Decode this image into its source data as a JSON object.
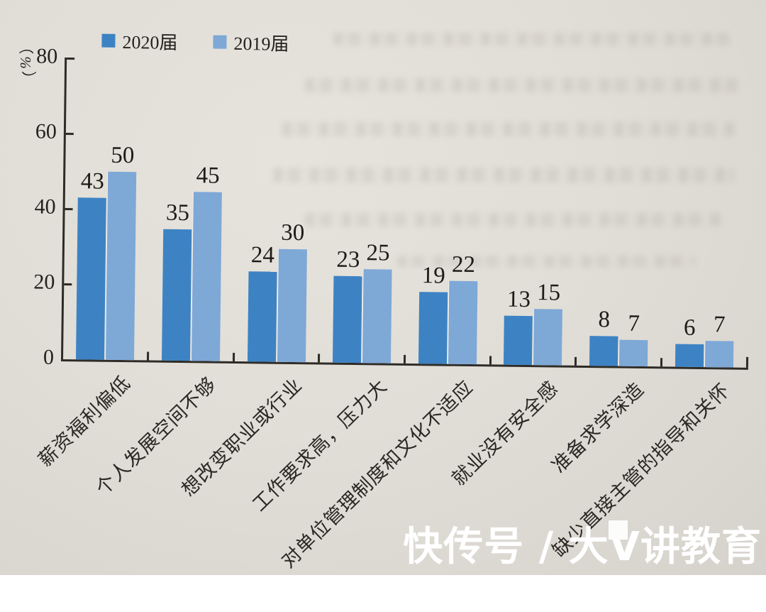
{
  "chart_data": {
    "type": "bar",
    "categories": [
      "薪资福利偏低",
      "个人发展空间不够",
      "想改变职业或行业",
      "工作要求高，压力大",
      "对单位管理制度和文化不适应",
      "就业没有安全感",
      "准备求学深造",
      "缺少直接主管的指导和关怀"
    ],
    "series": [
      {
        "name": "2020届",
        "values": [
          43,
          35,
          24,
          23,
          19,
          13,
          8,
          6
        ],
        "color": "#3d83c4"
      },
      {
        "name": "2019届",
        "values": [
          50,
          45,
          30,
          25,
          22,
          15,
          7,
          7
        ],
        "color": "#7ea8d6"
      }
    ],
    "ylabel": "（%）",
    "yticks": [
      0,
      20,
      40,
      60,
      80
    ],
    "ylim": [
      0,
      80
    ],
    "grid": false,
    "legend_position": "top-left",
    "value_labels": true
  },
  "watermark": {
    "text": "快传号 / 大V讲教育"
  },
  "colors": {
    "paper": "#e0ddd6",
    "axis": "#2e2b27",
    "text": "#24221e",
    "watermark_text": "#ffffff"
  }
}
